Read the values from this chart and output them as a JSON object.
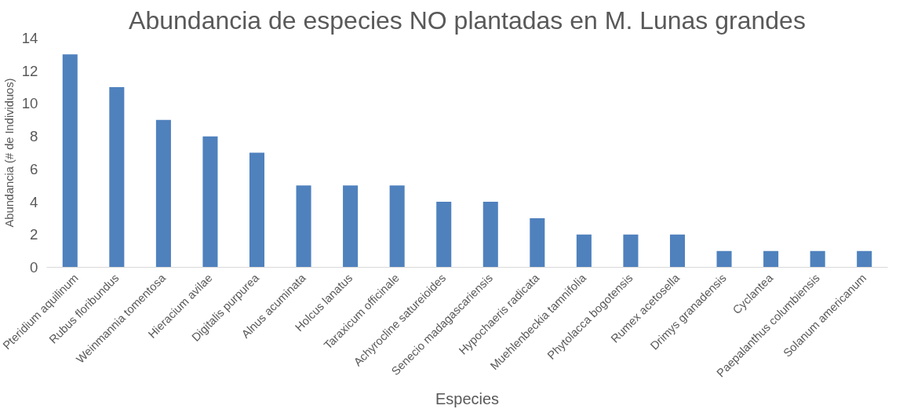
{
  "chart_data": {
    "type": "bar",
    "title": "Abundancia de especies NO plantadas en M. Lunas grandes",
    "xlabel": "Especies",
    "ylabel": "Abundancia (# de Individuos)",
    "categories": [
      "Pteridium aquilinum",
      "Rubus floribundus",
      "Weinmannia tomentosa",
      "Hieracium avilae",
      "Digitalis purpurea",
      "Alnus acuminata",
      "Holcus lanatus",
      "Taraxicum officinale",
      "Achyrocline satureioides",
      "Senecio madagascariensis",
      "Hypochaeris radicata",
      "Muehlenbeckia tamnifolia",
      "Phytolacca bogotensis",
      "Rumex acetosella",
      "Drimys granadensis",
      "Cyclantea",
      "Paepalanthus columbiensis",
      "Solanum americanum"
    ],
    "values": [
      13,
      11,
      9,
      8,
      7,
      5,
      5,
      5,
      4,
      4,
      3,
      2,
      2,
      2,
      1,
      1,
      1,
      1
    ],
    "color": "#4f81bd",
    "ylim": [
      0,
      14
    ],
    "yticks": [
      0,
      2,
      4,
      6,
      8,
      10,
      12,
      14
    ],
    "grid": false
  }
}
